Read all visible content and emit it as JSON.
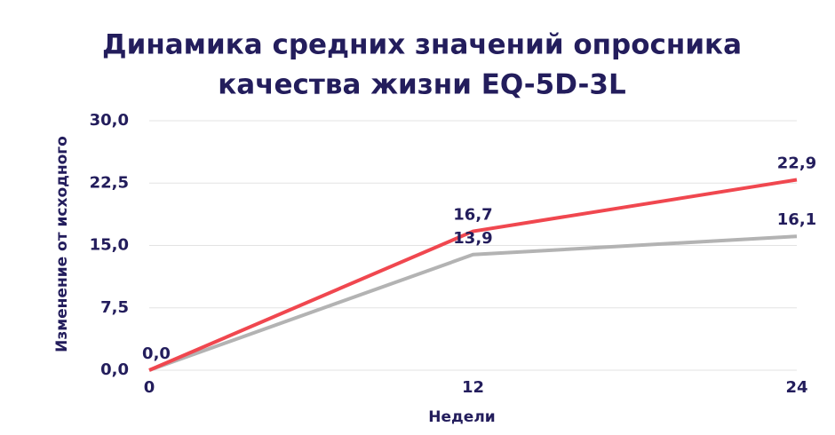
{
  "chart_data": {
    "type": "line",
    "title": "Динамика средних значений опросника",
    "subtitle": "качества жизни EQ-5D-3L",
    "x_label": "Недели",
    "y_label": "Изменение от исходного",
    "x": [
      0,
      12,
      24
    ],
    "series": [
      {
        "color": "#f0474f",
        "values": [
          0,
          16.7,
          22.9
        ],
        "value_labels": [
          "0,0",
          "16,7",
          "22,9"
        ]
      },
      {
        "color": "#b3b3b3",
        "values": [
          0,
          13.9,
          16.1
        ],
        "value_labels": [
          null,
          "13,9",
          "16,1"
        ]
      }
    ],
    "xlim": [
      0,
      24
    ],
    "xticks": [
      0,
      12,
      24
    ],
    "ylim": [
      0,
      30
    ],
    "yticks": [
      {
        "value": 0,
        "label": "0,0"
      },
      {
        "value": 7.5,
        "label": "7,5"
      },
      {
        "value": 15,
        "label": "15,0"
      },
      {
        "value": 22.5,
        "label": "22,5"
      },
      {
        "value": 30,
        "label": "30,0"
      }
    ],
    "grid": true
  }
}
